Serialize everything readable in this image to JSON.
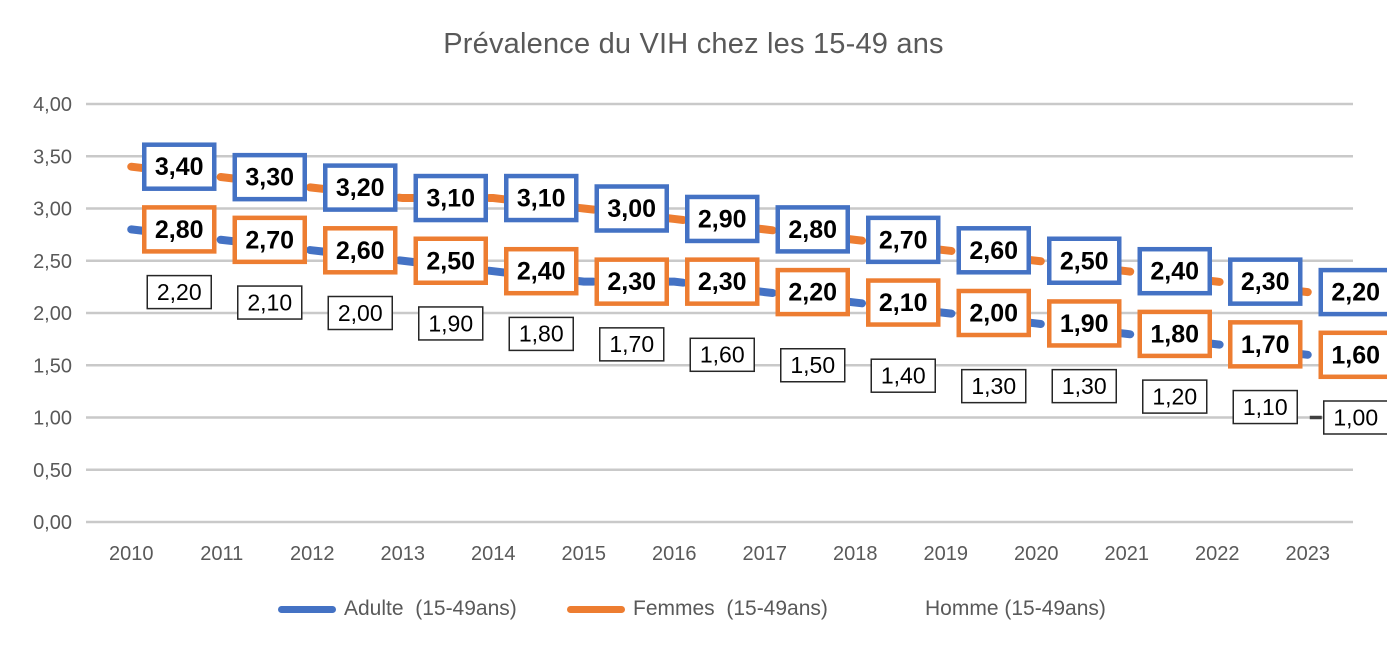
{
  "title": "Prévalence du VIH chez les 15-49 ans",
  "colors": {
    "accent_blue": "#4472C4",
    "accent_orange": "#ED7D31",
    "gridline": "#C9C9C9",
    "axis_text": "#595959",
    "data_label_text": "#000000",
    "homme_label_border": "#262626",
    "homme_end_dash": "#404040",
    "background": "#FFFFFF"
  },
  "chart_data": {
    "type": "line",
    "title": "Prévalence du VIH chez les 15-49 ans",
    "categories": [
      "2010",
      "2011",
      "2012",
      "2013",
      "2014",
      "2015",
      "2016",
      "2017",
      "2018",
      "2019",
      "2020",
      "2021",
      "2022",
      "2023"
    ],
    "ylim": [
      0,
      4
    ],
    "y_tick_step": 0.5,
    "y_tick_labels": [
      "0,00",
      "0,50",
      "1,00",
      "1,50",
      "2,00",
      "2,50",
      "3,00",
      "3,50",
      "4,00"
    ],
    "grid": true,
    "decimal_separator": ",",
    "series": [
      {
        "name": "Femmes  (15-49ans)",
        "line_color": "#ED7D31",
        "label_border_color": "#4472C4",
        "line_visible": true,
        "values": [
          3.4,
          3.3,
          3.2,
          3.1,
          3.1,
          3.0,
          2.9,
          2.8,
          2.7,
          2.6,
          2.5,
          2.4,
          2.3,
          2.2
        ]
      },
      {
        "name": "Adulte  (15-49ans)",
        "line_color": "#4472C4",
        "label_border_color": "#ED7D31",
        "line_visible": true,
        "values": [
          2.8,
          2.7,
          2.6,
          2.5,
          2.4,
          2.3,
          2.3,
          2.2,
          2.1,
          2.0,
          1.9,
          1.8,
          1.7,
          1.6
        ]
      },
      {
        "name": "Homme (15-49ans)",
        "line_color": "none",
        "label_border_color": "#262626",
        "line_visible": false,
        "values": [
          2.2,
          2.1,
          2.0,
          1.9,
          1.8,
          1.7,
          1.6,
          1.5,
          1.4,
          1.3,
          1.3,
          1.2,
          1.1,
          1.0
        ]
      }
    ],
    "annotations": [
      {
        "type": "end-dash",
        "series": "Homme (15-49ans)",
        "category": "2023",
        "value": 1.0
      }
    ],
    "legend_position": "bottom",
    "legend": [
      {
        "label": "Adulte  (15-49ans)",
        "swatch_color": "#4472C4",
        "swatch_visible": true
      },
      {
        "label": "Femmes  (15-49ans)",
        "swatch_color": "#ED7D31",
        "swatch_visible": true
      },
      {
        "label": "Homme (15-49ans)",
        "swatch_color": "none",
        "swatch_visible": false
      }
    ]
  }
}
